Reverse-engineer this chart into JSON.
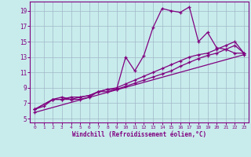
{
  "xlabel": "Windchill (Refroidissement éolien,°C)",
  "bg_color": "#c8ecec",
  "line_color": "#800080",
  "grid_color": "#a0b8c8",
  "xlim": [
    -0.5,
    23.5
  ],
  "ylim": [
    4.5,
    20.2
  ],
  "xticks": [
    0,
    1,
    2,
    3,
    4,
    5,
    6,
    7,
    8,
    9,
    10,
    11,
    12,
    13,
    14,
    15,
    16,
    17,
    18,
    19,
    20,
    21,
    22,
    23
  ],
  "yticks": [
    5,
    7,
    9,
    11,
    13,
    15,
    17,
    19
  ],
  "line1_x": [
    0,
    1,
    2,
    3,
    4,
    5,
    6,
    7,
    8,
    9,
    10,
    11,
    12,
    13,
    14,
    15,
    16,
    17,
    18,
    19,
    20,
    21,
    22,
    23
  ],
  "line1_y": [
    6.2,
    6.6,
    7.5,
    7.8,
    7.5,
    7.5,
    7.8,
    8.5,
    8.8,
    8.8,
    13.0,
    11.2,
    13.2,
    16.8,
    19.3,
    19.0,
    18.8,
    19.5,
    15.0,
    16.2,
    14.2,
    14.0,
    13.5,
    13.5
  ],
  "line2_x": [
    0,
    2,
    3,
    4,
    5,
    6,
    7,
    8,
    9,
    10,
    11,
    12,
    13,
    14,
    15,
    16,
    17,
    18,
    19,
    20,
    21,
    22,
    23
  ],
  "line2_y": [
    6.2,
    7.5,
    7.5,
    7.8,
    7.8,
    8.0,
    8.5,
    8.8,
    9.0,
    9.5,
    10.0,
    10.5,
    11.0,
    11.5,
    12.0,
    12.5,
    13.0,
    13.3,
    13.5,
    14.0,
    14.5,
    15.0,
    13.5
  ],
  "line3_x": [
    0,
    2,
    3,
    4,
    5,
    6,
    7,
    8,
    9,
    10,
    11,
    12,
    13,
    14,
    15,
    16,
    17,
    18,
    19,
    20,
    21,
    22,
    23
  ],
  "line3_y": [
    6.2,
    7.5,
    7.5,
    7.5,
    7.8,
    8.0,
    8.5,
    8.5,
    8.8,
    9.2,
    9.6,
    10.0,
    10.4,
    10.8,
    11.2,
    11.8,
    12.3,
    12.8,
    13.2,
    13.5,
    14.0,
    14.5,
    13.5
  ],
  "line4_x": [
    0,
    23
  ],
  "line4_y": [
    5.8,
    13.3
  ]
}
